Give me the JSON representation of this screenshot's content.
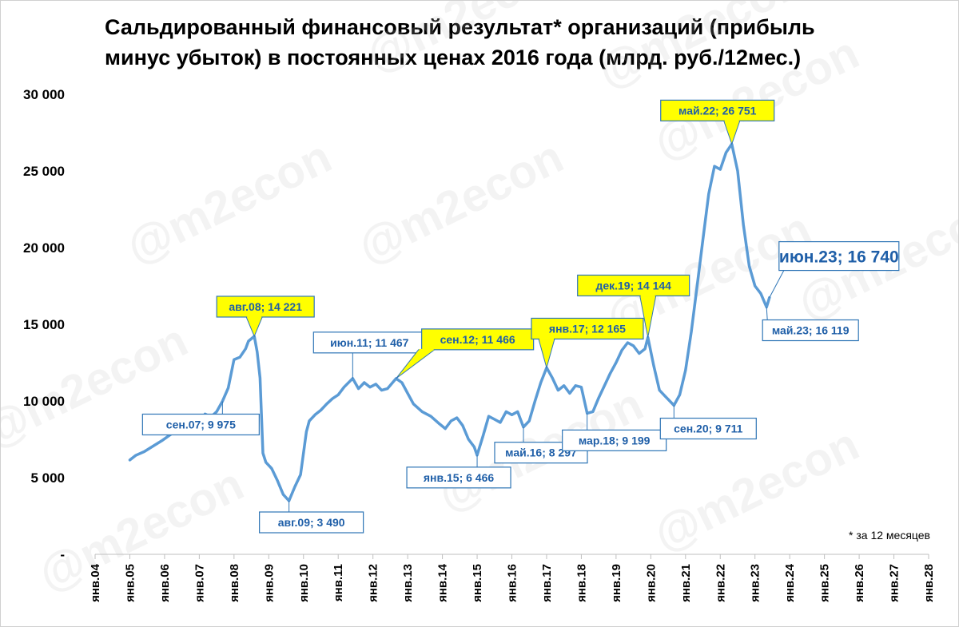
{
  "title": "Сальдированный финансовый результат* организаций (прибыль минус убыток) в постоянных ценах 2016 года (млрд. руб./12мес.)",
  "footnote": "* за 12 месяцев",
  "watermark": "@m2econ",
  "colors": {
    "line": "#5b9bd5",
    "callout_border": "#2e75b6",
    "callout_fill_highlight": "#ffff00",
    "callout_fill_plain": "#ffffff",
    "callout_text": "#1f5fa8"
  },
  "chart_data": {
    "type": "line",
    "title": "Сальдированный финансовый результат* организаций (прибыль минус убыток) в постоянных ценах 2016 года (млрд. руб./12мес.)",
    "ylim": [
      0,
      30000
    ],
    "yticks": [
      {
        "value": 0,
        "label": "-"
      },
      {
        "value": 5000,
        "label": "5 000"
      },
      {
        "value": 10000,
        "label": "10 000"
      },
      {
        "value": 15000,
        "label": "15 000"
      },
      {
        "value": 20000,
        "label": "20 000"
      },
      {
        "value": 25000,
        "label": "25 000"
      },
      {
        "value": 30000,
        "label": "30 000"
      }
    ],
    "xlim": [
      "2004-01",
      "2028-01"
    ],
    "xticks": [
      "янв.04",
      "янв.05",
      "янв.06",
      "янв.07",
      "янв.08",
      "янв.09",
      "янв.10",
      "янв.11",
      "янв.12",
      "янв.13",
      "янв.14",
      "янв.15",
      "янв.16",
      "янв.17",
      "янв.18",
      "янв.19",
      "янв.20",
      "янв.21",
      "янв.22",
      "янв.23",
      "янв.24",
      "янв.25",
      "янв.26",
      "янв.27",
      "янв.28"
    ],
    "grid": false,
    "series": [
      {
        "points": [
          [
            "2005-01",
            6150
          ],
          [
            "2005-03",
            6450
          ],
          [
            "2005-06",
            6700
          ],
          [
            "2005-09",
            7050
          ],
          [
            "2005-12",
            7400
          ],
          [
            "2006-03",
            7800
          ],
          [
            "2006-06",
            8250
          ],
          [
            "2006-09",
            8700
          ],
          [
            "2006-12",
            9050
          ],
          [
            "2007-02",
            8750
          ],
          [
            "2007-03",
            9150
          ],
          [
            "2007-05",
            8950
          ],
          [
            "2007-07",
            9300
          ],
          [
            "2007-09",
            9975
          ],
          [
            "2007-11",
            10850
          ],
          [
            "2008-01",
            12700
          ],
          [
            "2008-03",
            12850
          ],
          [
            "2008-05",
            13400
          ],
          [
            "2008-06",
            13900
          ],
          [
            "2008-08",
            14221
          ],
          [
            "2008-09",
            13200
          ],
          [
            "2008-10",
            11500
          ],
          [
            "2008-11",
            6600
          ],
          [
            "2008-12",
            6000
          ],
          [
            "2009-02",
            5600
          ],
          [
            "2009-04",
            4800
          ],
          [
            "2009-06",
            3900
          ],
          [
            "2009-08",
            3490
          ],
          [
            "2009-10",
            4400
          ],
          [
            "2009-12",
            5200
          ],
          [
            "2010-02",
            8000
          ],
          [
            "2010-03",
            8700
          ],
          [
            "2010-05",
            9100
          ],
          [
            "2010-07",
            9400
          ],
          [
            "2010-09",
            9800
          ],
          [
            "2010-11",
            10150
          ],
          [
            "2011-01",
            10400
          ],
          [
            "2011-03",
            10900
          ],
          [
            "2011-06",
            11467
          ],
          [
            "2011-08",
            10800
          ],
          [
            "2011-10",
            11200
          ],
          [
            "2011-12",
            10900
          ],
          [
            "2012-02",
            11100
          ],
          [
            "2012-04",
            10700
          ],
          [
            "2012-06",
            10800
          ],
          [
            "2012-09",
            11466
          ],
          [
            "2012-11",
            11200
          ],
          [
            "2013-01",
            10500
          ],
          [
            "2013-03",
            9800
          ],
          [
            "2013-06",
            9300
          ],
          [
            "2013-09",
            9000
          ],
          [
            "2013-12",
            8500
          ],
          [
            "2014-02",
            8200
          ],
          [
            "2014-04",
            8700
          ],
          [
            "2014-06",
            8900
          ],
          [
            "2014-08",
            8400
          ],
          [
            "2014-10",
            7500
          ],
          [
            "2014-12",
            7000
          ],
          [
            "2015-01",
            6466
          ],
          [
            "2015-03",
            7700
          ],
          [
            "2015-05",
            9000
          ],
          [
            "2015-07",
            8800
          ],
          [
            "2015-09",
            8600
          ],
          [
            "2015-11",
            9300
          ],
          [
            "2016-01",
            9100
          ],
          [
            "2016-03",
            9300
          ],
          [
            "2016-05",
            8297
          ],
          [
            "2016-07",
            8700
          ],
          [
            "2016-09",
            10000
          ],
          [
            "2016-11",
            11200
          ],
          [
            "2017-01",
            12165
          ],
          [
            "2017-03",
            11500
          ],
          [
            "2017-05",
            10700
          ],
          [
            "2017-07",
            11000
          ],
          [
            "2017-09",
            10500
          ],
          [
            "2017-11",
            11000
          ],
          [
            "2018-01",
            10900
          ],
          [
            "2018-03",
            9199
          ],
          [
            "2018-05",
            9300
          ],
          [
            "2018-07",
            10200
          ],
          [
            "2018-09",
            11000
          ],
          [
            "2018-11",
            11800
          ],
          [
            "2019-01",
            12500
          ],
          [
            "2019-03",
            13300
          ],
          [
            "2019-05",
            13800
          ],
          [
            "2019-07",
            13600
          ],
          [
            "2019-09",
            13100
          ],
          [
            "2019-11",
            13400
          ],
          [
            "2019-12",
            14144
          ],
          [
            "2020-02",
            12300
          ],
          [
            "2020-04",
            10700
          ],
          [
            "2020-06",
            10300
          ],
          [
            "2020-09",
            9711
          ],
          [
            "2020-11",
            10400
          ],
          [
            "2021-01",
            12000
          ],
          [
            "2021-03",
            14500
          ],
          [
            "2021-05",
            17500
          ],
          [
            "2021-07",
            20500
          ],
          [
            "2021-09",
            23500
          ],
          [
            "2021-11",
            25300
          ],
          [
            "2022-01",
            25100
          ],
          [
            "2022-03",
            26200
          ],
          [
            "2022-05",
            26751
          ],
          [
            "2022-07",
            25000
          ],
          [
            "2022-09",
            21500
          ],
          [
            "2022-11",
            18800
          ],
          [
            "2023-01",
            17500
          ],
          [
            "2023-03",
            17000
          ],
          [
            "2023-05",
            16119
          ],
          [
            "2023-06",
            16740
          ]
        ]
      }
    ],
    "annotations": [
      {
        "label": "сен.07;  9 975",
        "x": "2007-09",
        "y": 9975,
        "style": "plain"
      },
      {
        "label": "авг.08;  14 221",
        "x": "2008-08",
        "y": 14221,
        "style": "highlight"
      },
      {
        "label": "авг.09;  3 490",
        "x": "2009-08",
        "y": 3490,
        "style": "plain"
      },
      {
        "label": "июн.11;  11 467",
        "x": "2011-06",
        "y": 11467,
        "style": "plain"
      },
      {
        "label": "сен.12;  11 466",
        "x": "2012-09",
        "y": 11466,
        "style": "highlight"
      },
      {
        "label": "янв.15;  6 466",
        "x": "2015-01",
        "y": 6466,
        "style": "plain"
      },
      {
        "label": "май.16;  8 297",
        "x": "2016-05",
        "y": 8297,
        "style": "plain"
      },
      {
        "label": "янв.17;  12 165",
        "x": "2017-01",
        "y": 12165,
        "style": "highlight"
      },
      {
        "label": "мар.18;  9 199",
        "x": "2018-03",
        "y": 9199,
        "style": "plain"
      },
      {
        "label": "дек.19;  14 144",
        "x": "2019-12",
        "y": 14144,
        "style": "highlight"
      },
      {
        "label": "сен.20;  9 711",
        "x": "2020-09",
        "y": 9711,
        "style": "plain"
      },
      {
        "label": "май.22;  26 751",
        "x": "2022-05",
        "y": 26751,
        "style": "highlight"
      },
      {
        "label": "май.23;  16 119",
        "x": "2023-05",
        "y": 16119,
        "style": "plain"
      },
      {
        "label": "июн.23;  16 740",
        "x": "2023-06",
        "y": 16740,
        "style": "big"
      }
    ]
  }
}
